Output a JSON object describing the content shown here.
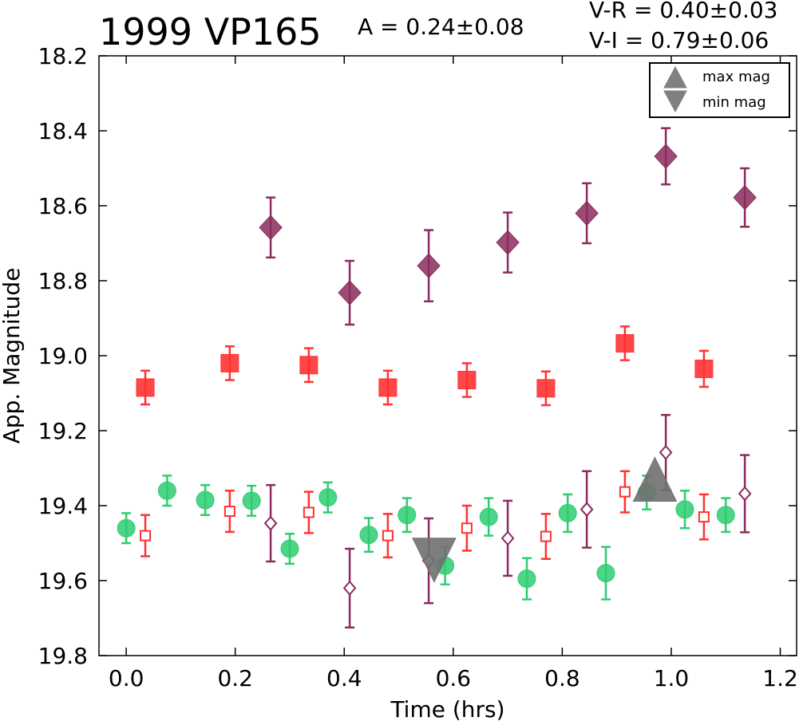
{
  "chart_data": {
    "type": "scatter",
    "title": "1999 VP165",
    "amplitude_text": "A  = 0.24±0.08",
    "color_lines": [
      "V-R = 0.40±0.03",
      "V-I  = 0.79±0.06"
    ],
    "xlabel": "Time (hrs)",
    "ylabel": "App. Magnitude",
    "xlim": [
      -0.05,
      1.23
    ],
    "ylim": [
      19.8,
      18.2
    ],
    "y_inverted": true,
    "xticks": [
      "0.0",
      "0.2",
      "0.4",
      "0.6",
      "0.8",
      "1.0",
      "1.2"
    ],
    "yticks": [
      "18.2",
      "18.4",
      "18.6",
      "18.8",
      "19.0",
      "19.2",
      "19.4",
      "19.6",
      "19.8"
    ],
    "grid": false,
    "legend_position": "top-right",
    "legend": [
      {
        "label": "max mag",
        "marker": "triangle-up",
        "color": "#808080"
      },
      {
        "label": "min mag",
        "marker": "triangle-down",
        "color": "#808080"
      }
    ],
    "series": [
      {
        "id": "green",
        "marker": "circle-filled",
        "color": "#2ecc71",
        "points": [
          [
            0.0,
            19.46,
            0.04
          ],
          [
            0.075,
            19.36,
            0.04
          ],
          [
            0.145,
            19.385,
            0.04
          ],
          [
            0.23,
            19.387,
            0.04
          ],
          [
            0.3,
            19.515,
            0.04
          ],
          [
            0.37,
            19.378,
            0.04
          ],
          [
            0.445,
            19.478,
            0.045
          ],
          [
            0.515,
            19.425,
            0.045
          ],
          [
            0.585,
            19.56,
            0.05
          ],
          [
            0.665,
            19.43,
            0.05
          ],
          [
            0.735,
            19.595,
            0.055
          ],
          [
            0.81,
            19.42,
            0.05
          ],
          [
            0.88,
            19.58,
            0.07
          ],
          [
            0.955,
            19.365,
            0.045
          ],
          [
            1.025,
            19.41,
            0.05
          ],
          [
            1.1,
            19.425,
            0.045
          ]
        ]
      },
      {
        "id": "red-filled",
        "marker": "square-filled",
        "color": "#ff3333",
        "points": [
          [
            0.035,
            19.085,
            0.045
          ],
          [
            0.19,
            19.02,
            0.045
          ],
          [
            0.335,
            19.025,
            0.045
          ],
          [
            0.48,
            19.085,
            0.045
          ],
          [
            0.625,
            19.065,
            0.045
          ],
          [
            0.77,
            19.087,
            0.045
          ],
          [
            0.915,
            18.967,
            0.045
          ],
          [
            1.06,
            19.035,
            0.048
          ]
        ]
      },
      {
        "id": "purple-filled",
        "marker": "diamond-filled",
        "color": "#8b2b5e",
        "points": [
          [
            0.265,
            18.658,
            0.08
          ],
          [
            0.41,
            18.832,
            0.085
          ],
          [
            0.555,
            18.76,
            0.095
          ],
          [
            0.7,
            18.698,
            0.08
          ],
          [
            0.845,
            18.62,
            0.08
          ],
          [
            0.99,
            18.468,
            0.075
          ],
          [
            1.135,
            18.578,
            0.078
          ]
        ]
      },
      {
        "id": "red-open",
        "marker": "square-open",
        "color": "#ff3333",
        "points": [
          [
            0.035,
            19.48,
            0.055
          ],
          [
            0.19,
            19.415,
            0.055
          ],
          [
            0.335,
            19.418,
            0.055
          ],
          [
            0.48,
            19.48,
            0.058
          ],
          [
            0.625,
            19.46,
            0.06
          ],
          [
            0.77,
            19.482,
            0.06
          ],
          [
            0.915,
            19.363,
            0.055
          ],
          [
            1.06,
            19.43,
            0.06
          ]
        ]
      },
      {
        "id": "purple-open",
        "marker": "diamond-open",
        "color": "#8b2b5e",
        "points": [
          [
            0.265,
            19.447,
            0.102
          ],
          [
            0.41,
            19.62,
            0.105
          ],
          [
            0.555,
            19.547,
            0.113
          ],
          [
            0.7,
            19.487,
            0.1
          ],
          [
            0.845,
            19.41,
            0.102
          ],
          [
            0.99,
            19.258,
            0.1
          ],
          [
            1.135,
            19.368,
            0.103
          ]
        ]
      }
    ],
    "extrema": [
      {
        "label": "max mag",
        "marker": "triangle-up",
        "x": 0.97,
        "y": 19.335
      },
      {
        "label": "min mag",
        "marker": "triangle-down",
        "x": 0.565,
        "y": 19.54
      }
    ]
  }
}
